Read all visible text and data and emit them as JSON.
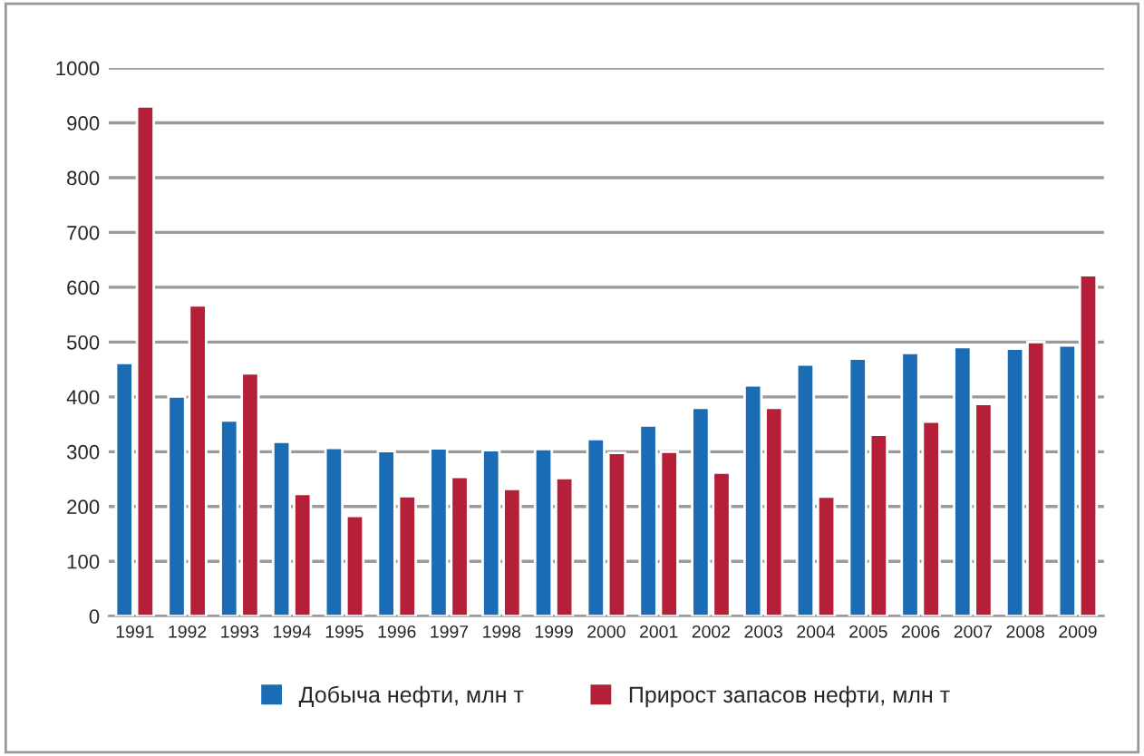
{
  "chart_data": {
    "type": "bar",
    "categories": [
      "1991",
      "1992",
      "1993",
      "1994",
      "1995",
      "1996",
      "1997",
      "1998",
      "1999",
      "2000",
      "2001",
      "2002",
      "2003",
      "2004",
      "2005",
      "2006",
      "2007",
      "2008",
      "2009"
    ],
    "series": [
      {
        "name": "Добыча нефти, млн т",
        "color": "#1a6cb5",
        "values": [
          462,
          401,
          357,
          318,
          307,
          301,
          306,
          303,
          305,
          323,
          348,
          380,
          421,
          459,
          470,
          480,
          491,
          488,
          494
        ]
      },
      {
        "name": "Прирост запасов нефти, млн т",
        "color": "#b51f38",
        "values": [
          930,
          567,
          443,
          223,
          183,
          219,
          254,
          232,
          252,
          298,
          300,
          262,
          380,
          218,
          331,
          355,
          387,
          500,
          622
        ]
      }
    ],
    "ylim": [
      0,
      1000
    ],
    "yticks": [
      0,
      100,
      200,
      300,
      400,
      500,
      600,
      700,
      800,
      900,
      1000
    ],
    "grid": "y",
    "legend": "bottom"
  }
}
